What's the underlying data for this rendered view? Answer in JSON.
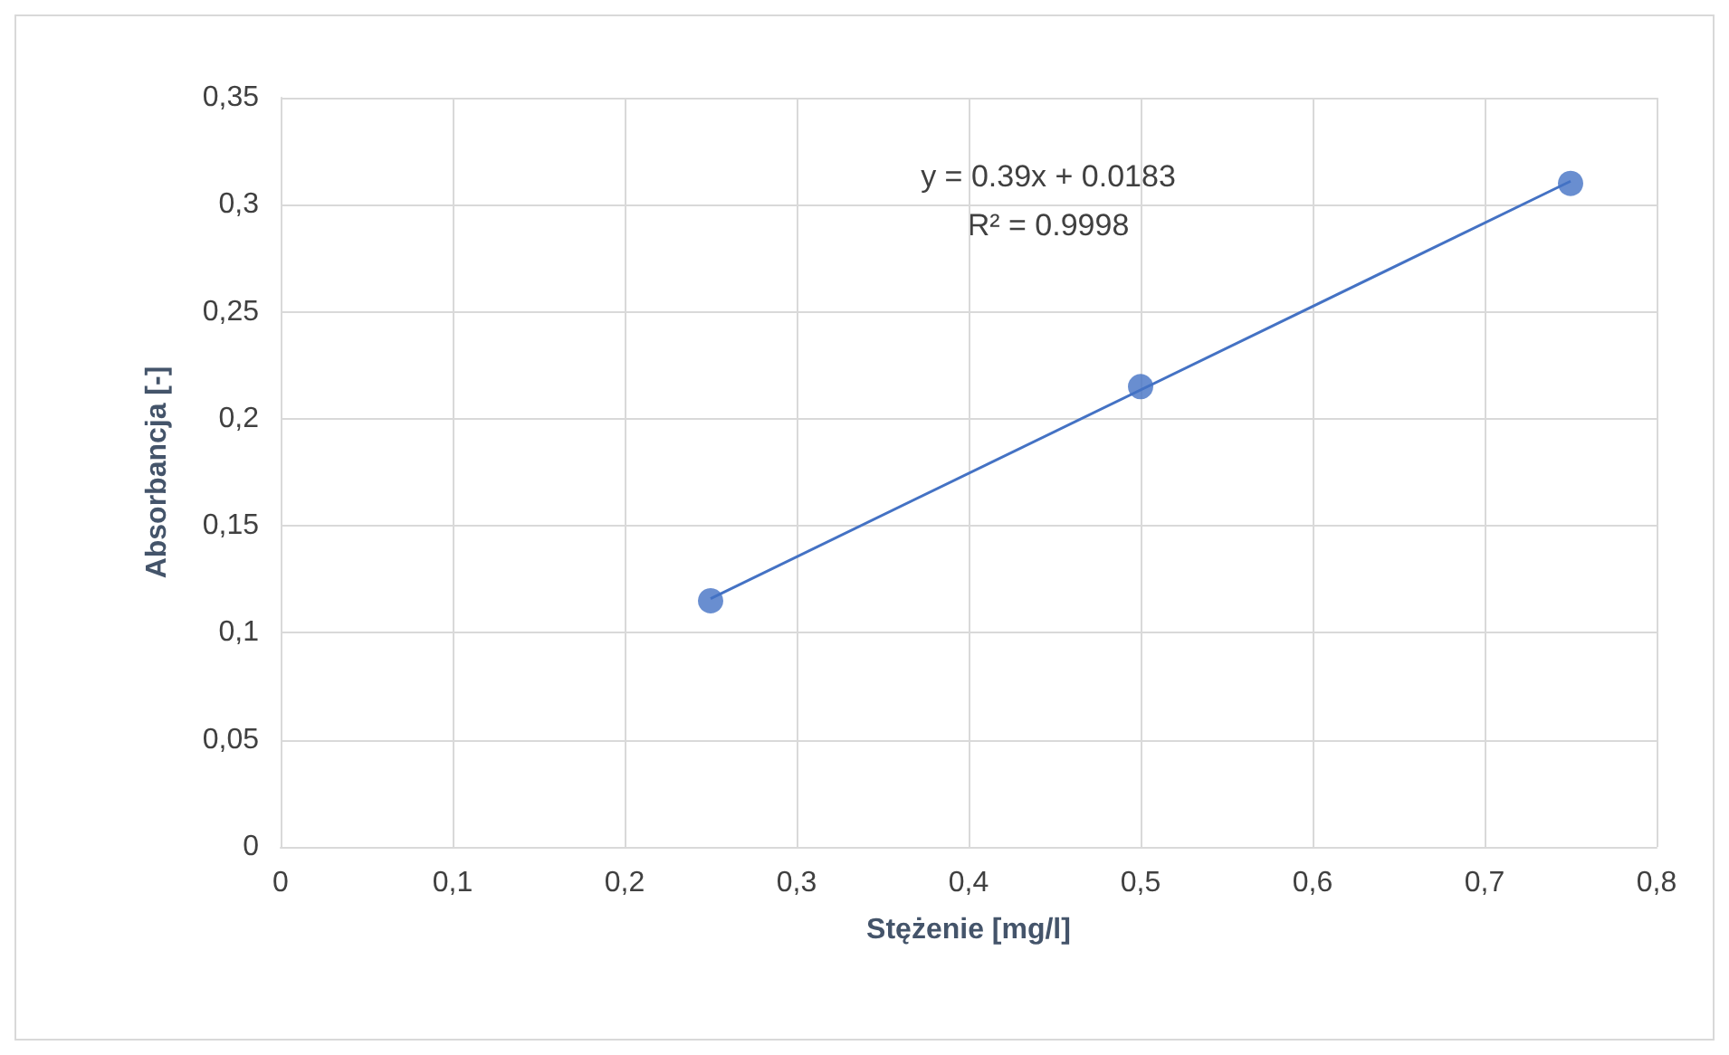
{
  "chart_data": {
    "type": "scatter",
    "xlabel": "Stężenie [mg/l]",
    "ylabel": "Absorbancja [-]",
    "x": [
      0.25,
      0.5,
      0.75
    ],
    "series": [
      {
        "color": "#4472c4",
        "values": [
          0.115,
          0.215,
          0.31
        ],
        "marker": "circle"
      },
      {
        "type": "line",
        "color": "#4472c4",
        "x": [
          0.25,
          0.75
        ],
        "values": [
          0.116,
          0.311
        ],
        "line_style": "solid",
        "marker": "none"
      }
    ],
    "xlim": [
      0,
      0.8
    ],
    "xticks": [
      0,
      {
        "value": 0.1,
        "label": "0,1"
      },
      {
        "value": 0.2,
        "label": "0,2"
      },
      {
        "value": 0.3,
        "label": "0,3"
      },
      {
        "value": 0.4,
        "label": "0,4"
      },
      {
        "value": 0.5,
        "label": "0,5"
      },
      {
        "value": 0.6,
        "label": "0,6"
      },
      {
        "value": 0.7,
        "label": "0,7"
      },
      {
        "value": 0.8,
        "label": "0,8"
      }
    ],
    "ylim": [
      0,
      0.35
    ],
    "yticks": [
      0,
      {
        "value": 0.05,
        "label": "0,05"
      },
      {
        "value": 0.1,
        "label": "0,1"
      },
      {
        "value": 0.15,
        "label": "0,15"
      },
      {
        "value": 0.2,
        "label": "0,2"
      },
      {
        "value": 0.25,
        "label": "0,25"
      },
      {
        "value": 0.3,
        "label": "0,3"
      },
      {
        "value": 0.35,
        "label": "0,35"
      }
    ],
    "grid": true,
    "annotations": [
      "y = 0.39x + 0.0183",
      "R² = 0.9998"
    ]
  }
}
